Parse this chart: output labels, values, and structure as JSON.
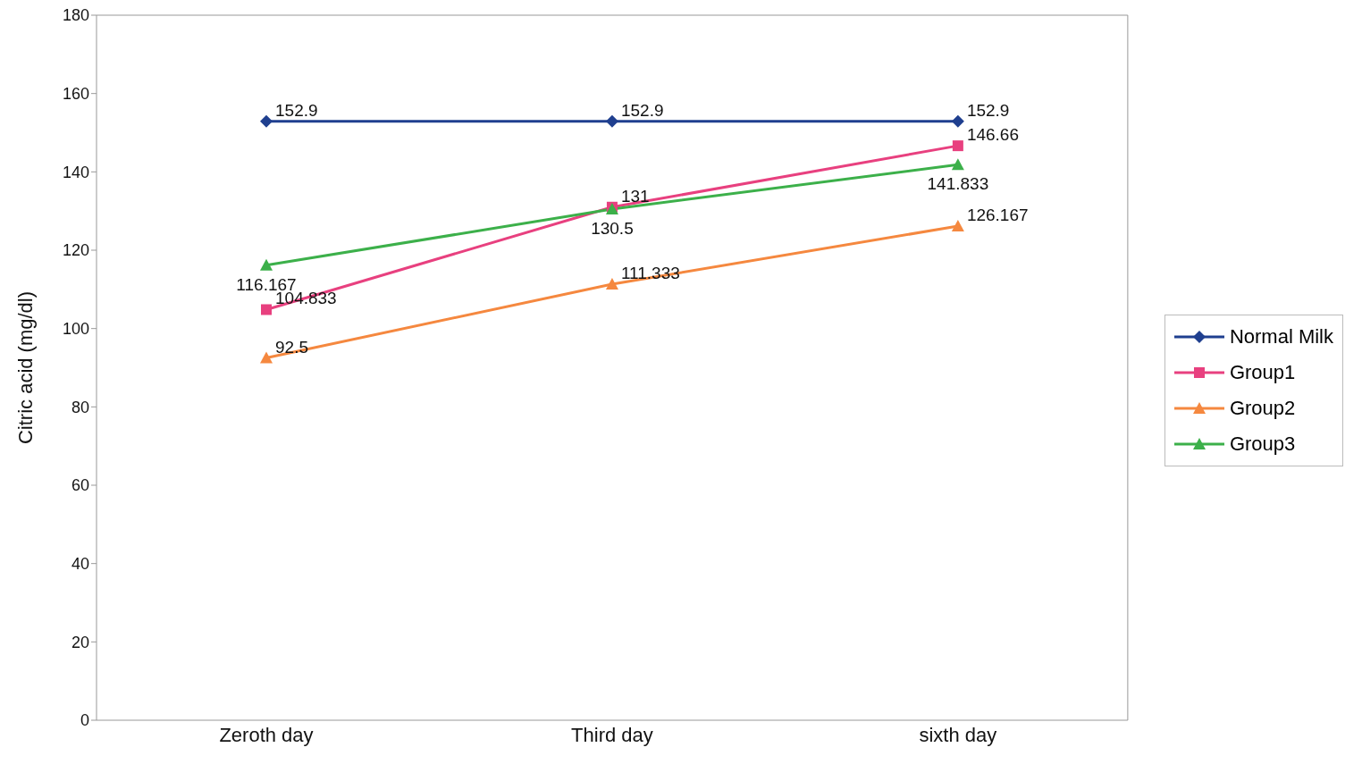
{
  "chart_data": {
    "type": "line",
    "ylabel": "Citric acid (mg/dl)",
    "categories": [
      "Zeroth day",
      "Third day",
      "sixth day"
    ],
    "series": [
      {
        "name": "Normal Milk",
        "color": "#1f3f8f",
        "marker": "diamond",
        "values": [
          152.9,
          152.9,
          152.9
        ]
      },
      {
        "name": "Group1",
        "color": "#e8407f",
        "marker": "square",
        "values": [
          104.833,
          131,
          146.66
        ]
      },
      {
        "name": "Group2",
        "color": "#f5883f",
        "marker": "triangle",
        "values": [
          92.5,
          111.333,
          126.167
        ]
      },
      {
        "name": "Group3",
        "color": "#3cb04a",
        "marker": "triangle",
        "values": [
          116.167,
          130.5,
          141.833
        ]
      }
    ],
    "ylim": [
      0,
      180
    ],
    "yticks": [
      0,
      20,
      40,
      60,
      80,
      100,
      120,
      140,
      160,
      180
    ],
    "legend": "right",
    "data_labels": true
  }
}
